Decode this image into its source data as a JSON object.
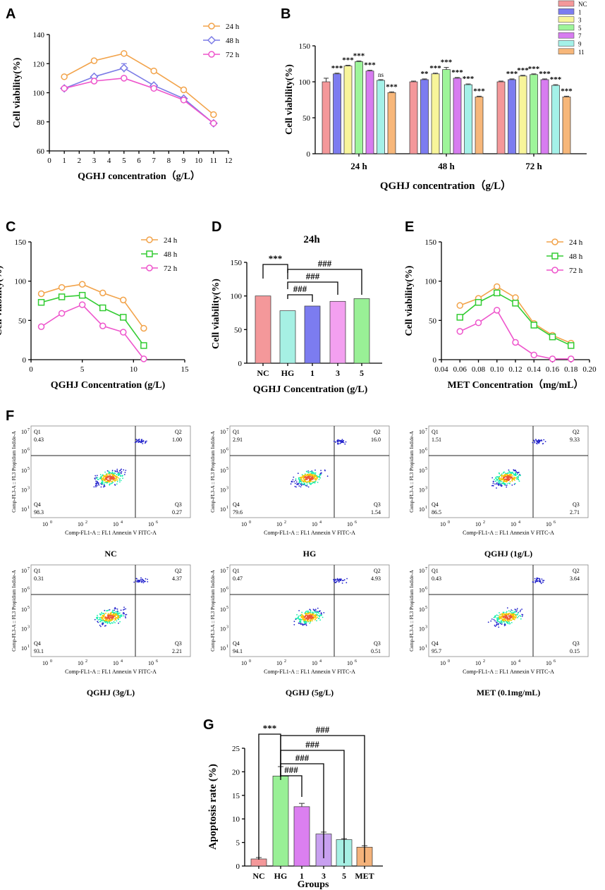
{
  "colors": {
    "c24": "#f2a34a",
    "c48": "#7b7be6",
    "c72": "#ee55cc",
    "c48g": "#33cc33",
    "nc": "#f4989a",
    "d1": "#7c7cf0",
    "d3": "#f8f59a",
    "d5": "#9ef59a",
    "d7": "#d77cf0",
    "d9": "#a4f1e8",
    "d11": "#f7b77a",
    "hg": "#a6f0e4",
    "q1": "#7c7cf0",
    "q3": "#f3a0f0",
    "q5": "#99f096",
    "g_hg": "#99f096",
    "g_1": "#db7ff0",
    "g_3": "#c8a0f0",
    "g_5": "#a6f0e4",
    "g_met": "#f4b27a"
  },
  "panels": {
    "A": "A",
    "B": "B",
    "C": "C",
    "D": "D",
    "E": "E",
    "F": "F",
    "G": "G"
  },
  "chart_data": [
    {
      "id": "A",
      "type": "line",
      "xlabel": "QGHJ concentration（g/L）",
      "ylabel": "Cell viability(%)",
      "xlim": [
        0,
        12
      ],
      "ylim": [
        60,
        140
      ],
      "xticks": [
        0,
        1,
        2,
        3,
        4,
        5,
        6,
        7,
        8,
        9,
        10,
        11,
        12
      ],
      "yticks": [
        60,
        80,
        100,
        120,
        140
      ],
      "x": [
        1,
        3,
        5,
        7,
        9,
        11
      ],
      "series": [
        {
          "name": "24 h",
          "values": [
            111,
            122,
            127,
            115,
            102,
            85
          ]
        },
        {
          "name": "48 h",
          "values": [
            103,
            111,
            117,
            105,
            96,
            79
          ]
        },
        {
          "name": "72 h",
          "values": [
            103,
            108,
            110,
            103,
            95,
            79
          ]
        }
      ],
      "error_bars": [
        {
          "series": "48 h",
          "x": 5,
          "error": 3
        }
      ]
    },
    {
      "id": "B",
      "type": "bar",
      "xlabel": "QGHJ concentration（g/L）",
      "ylabel": "Cell viability(%)",
      "ylim": [
        0,
        150
      ],
      "yticks": [
        0,
        50,
        100,
        150
      ],
      "categories": [
        "24 h",
        "48 h",
        "72 h"
      ],
      "legend": [
        "NC",
        "1",
        "3",
        "5",
        "7",
        "9",
        "11"
      ],
      "groups": [
        {
          "label": "24 h",
          "values": [
            100,
            111,
            122,
            128,
            115,
            102,
            85
          ],
          "errors": [
            5,
            1,
            1,
            1,
            1,
            1,
            1
          ],
          "sig": [
            "",
            "***",
            "***",
            "***",
            "***",
            "ns",
            "***"
          ]
        },
        {
          "label": "48 h",
          "values": [
            100,
            103,
            111,
            117,
            105,
            96,
            79
          ],
          "errors": [
            1,
            1,
            1,
            3,
            1,
            1,
            1
          ],
          "sig": [
            "",
            "**",
            "***",
            "***",
            "***",
            "***",
            "***"
          ]
        },
        {
          "label": "72 h",
          "values": [
            100,
            103,
            108,
            110,
            103,
            95,
            79
          ],
          "errors": [
            1,
            1,
            1,
            1,
            1,
            1,
            1
          ],
          "sig": [
            "",
            "***",
            "***",
            "***",
            "***",
            "***",
            "***"
          ]
        }
      ]
    },
    {
      "id": "C",
      "type": "line",
      "xlabel": "QGHJ Concentration (g/L)",
      "ylabel": "Cell viability(%)",
      "xlim": [
        0,
        15
      ],
      "ylim": [
        0,
        150
      ],
      "xticks": [
        0,
        5,
        10,
        15
      ],
      "yticks": [
        0,
        50,
        100,
        150
      ],
      "x": [
        1,
        3,
        5,
        7,
        9,
        11
      ],
      "series": [
        {
          "name": "24 h",
          "values": [
            84,
            92,
            96,
            85,
            76,
            40
          ]
        },
        {
          "name": "48 h",
          "values": [
            73,
            80,
            82,
            66,
            54,
            18
          ]
        },
        {
          "name": "72 h",
          "values": [
            42,
            59,
            70,
            43,
            35,
            1
          ]
        }
      ]
    },
    {
      "id": "D",
      "type": "bar",
      "title": "24h",
      "xlabel": "QGHJ Concentration (g/L)",
      "ylabel": "Cell viability(%)",
      "ylim": [
        0,
        150
      ],
      "yticks": [
        0,
        50,
        100,
        150
      ],
      "categories": [
        "NC",
        "HG",
        "1",
        "3",
        "5"
      ],
      "values": [
        100,
        78,
        85,
        92,
        96
      ],
      "annotations": [
        {
          "from": "NC",
          "to": "HG",
          "text": "***"
        },
        {
          "from": "HG",
          "to": "1",
          "text": "###"
        },
        {
          "from": "HG",
          "to": "3",
          "text": "###"
        },
        {
          "from": "HG",
          "to": "5",
          "text": "###"
        }
      ]
    },
    {
      "id": "E",
      "type": "line",
      "xlabel": "MET Concentration（mg/mL）",
      "ylabel": "Cell viability(%)",
      "xlim": [
        0.04,
        0.2
      ],
      "ylim": [
        0,
        150
      ],
      "xticks": [
        "0.04",
        "0.06",
        "0.08",
        "0.10",
        "0.12",
        "0.14",
        "0.16",
        "0.18",
        "0.20"
      ],
      "yticks": [
        0,
        50,
        100,
        150
      ],
      "x": [
        0.06,
        0.08,
        0.1,
        0.12,
        0.14,
        0.16,
        0.18
      ],
      "series": [
        {
          "name": "24 h",
          "values": [
            69,
            78,
            93,
            79,
            46,
            31,
            21
          ]
        },
        {
          "name": "48 h",
          "values": [
            54,
            73,
            85,
            72,
            44,
            29,
            18
          ]
        },
        {
          "name": "72 h",
          "values": [
            36,
            47,
            63,
            22,
            6,
            1,
            1
          ]
        }
      ]
    },
    {
      "id": "F",
      "type": "scatter",
      "xlabel": "Comp-FL1-A :: FL1 Annexin V FITC-A",
      "ylabel": "Comp-FL3-A :: FL3 Propidium Iodide-A",
      "ticks": [
        "10",
        "10",
        "10",
        "10",
        "10"
      ],
      "tick_exps": [
        "0",
        "2",
        "4",
        "6"
      ],
      "ytick_exps": [
        "1",
        "3",
        "5",
        "6",
        "7"
      ],
      "plots": [
        {
          "caption": "NC",
          "q1": "0.43",
          "q2": "1.00",
          "q3": "0.27",
          "q4": "98.3"
        },
        {
          "caption": "HG",
          "q1": "2.91",
          "q2": "16.0",
          "q3": "1.54",
          "q4": "79.6"
        },
        {
          "caption": "QGHJ (1g/L)",
          "q1": "1.51",
          "q2": "9.33",
          "q3": "2.71",
          "q4": "86.5"
        },
        {
          "caption": "QGHJ (3g/L)",
          "q1": "0.31",
          "q2": "4.37",
          "q3": "2.21",
          "q4": "93.1"
        },
        {
          "caption": "QGHJ (5g/L)",
          "q1": "0.47",
          "q2": "4.93",
          "q3": "0.51",
          "q4": "94.1"
        },
        {
          "caption": "MET (0.1mg/mL)",
          "q1": "0.43",
          "q2": "3.64",
          "q3": "0.15",
          "q4": "95.7"
        }
      ]
    },
    {
      "id": "G",
      "type": "bar",
      "xlabel": "Groups",
      "ylabel": "Apoptosis rate (%)",
      "ylim": [
        0,
        25
      ],
      "yticks": [
        0,
        5,
        10,
        15,
        20,
        25
      ],
      "categories": [
        "NC",
        "HG",
        "1",
        "3",
        "5",
        "MET"
      ],
      "values": [
        1.5,
        19.1,
        12.6,
        6.8,
        5.6,
        4.0
      ],
      "errors": [
        0.3,
        2.0,
        0.7,
        0.4,
        0.2,
        0.3
      ],
      "annotations": [
        {
          "from": "NC",
          "to": "HG",
          "text": "***"
        },
        {
          "from": "HG",
          "to": "1",
          "text": "###"
        },
        {
          "from": "HG",
          "to": "3",
          "text": "###"
        },
        {
          "from": "HG",
          "to": "5",
          "text": "###"
        },
        {
          "from": "HG",
          "to": "MET",
          "text": "###"
        }
      ]
    }
  ]
}
